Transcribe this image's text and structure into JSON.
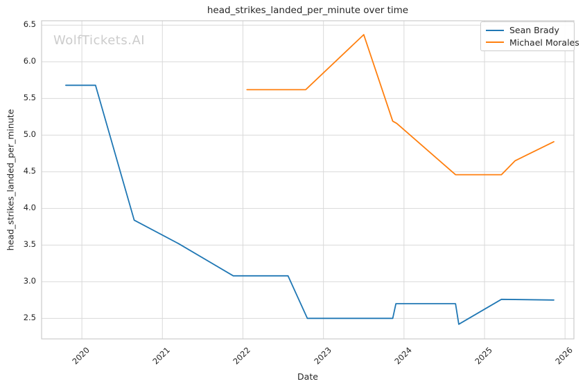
{
  "chart": {
    "title": "head_strikes_landed_per_minute over time",
    "watermark": "WolfTickets.AI",
    "xlabel": "Date",
    "ylabel": "head_strikes_landed_per_minute"
  },
  "chart_data": {
    "type": "line",
    "title": "head_strikes_landed_per_minute over time",
    "xlabel": "Date",
    "ylabel": "head_strikes_landed_per_minute",
    "xlim": [
      2019.5,
      2026.11
    ],
    "ylim": [
      2.22,
      6.56
    ],
    "x_ticks": [
      2020,
      2021,
      2022,
      2023,
      2024,
      2025,
      2026
    ],
    "y_ticks": [
      2.5,
      3.0,
      3.5,
      4.0,
      4.5,
      5.0,
      5.5,
      6.0,
      6.5
    ],
    "grid": true,
    "legend_position": "upper right",
    "colors": {
      "grid": "#d9d9d9",
      "spine": "#cccccc",
      "text": "#262626",
      "watermark": "#cccccc"
    },
    "series": [
      {
        "name": "Sean Brady",
        "color": "#1f77b4",
        "points": [
          [
            2019.8,
            5.68
          ],
          [
            2020.17,
            5.68
          ],
          [
            2020.65,
            3.84
          ],
          [
            2021.2,
            3.52
          ],
          [
            2021.88,
            3.08
          ],
          [
            2022.56,
            3.08
          ],
          [
            2022.8,
            2.5
          ],
          [
            2023.86,
            2.5
          ],
          [
            2023.9,
            2.7
          ],
          [
            2024.64,
            2.7
          ],
          [
            2024.68,
            2.42
          ],
          [
            2025.21,
            2.76
          ],
          [
            2025.86,
            2.75
          ]
        ]
      },
      {
        "name": "Michael Morales",
        "color": "#ff7f0e",
        "points": [
          [
            2022.05,
            5.62
          ],
          [
            2022.78,
            5.62
          ],
          [
            2023.5,
            6.37
          ],
          [
            2023.86,
            5.19
          ],
          [
            2023.91,
            5.16
          ],
          [
            2024.64,
            4.46
          ],
          [
            2025.21,
            4.46
          ],
          [
            2025.38,
            4.65
          ],
          [
            2025.86,
            4.91
          ]
        ]
      }
    ]
  }
}
